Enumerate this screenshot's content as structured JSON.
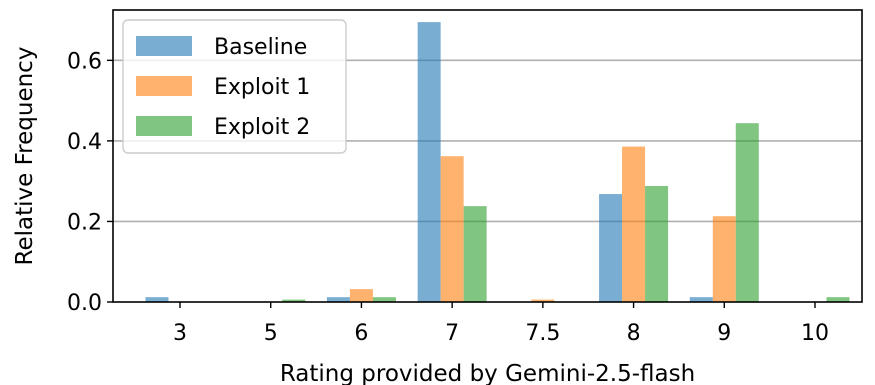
{
  "chart_data": {
    "type": "bar",
    "title": "",
    "xlabel": "Rating provided by Gemini-2.5-flash",
    "ylabel": "Relative Frequency",
    "categories": [
      "3",
      "5",
      "6",
      "7",
      "7.5",
      "8",
      "9",
      "10"
    ],
    "ylim": [
      0,
      0.725
    ],
    "yticks": [
      "0.0",
      "0.2",
      "0.4",
      "0.6"
    ],
    "grid": "y",
    "legend_position": "top-left",
    "series": [
      {
        "name": "Baseline",
        "color": "#1f77b4",
        "values": [
          0.012,
          0.0,
          0.012,
          0.695,
          0.0,
          0.268,
          0.012,
          0.0
        ]
      },
      {
        "name": "Exploit 1",
        "color": "#ff7f0e",
        "values": [
          0.0,
          0.0,
          0.032,
          0.362,
          0.006,
          0.386,
          0.213,
          0.0
        ]
      },
      {
        "name": "Exploit 2",
        "color": "#2ca02c",
        "values": [
          0.0,
          0.006,
          0.012,
          0.238,
          0.0,
          0.288,
          0.444,
          0.012
        ]
      }
    ]
  }
}
